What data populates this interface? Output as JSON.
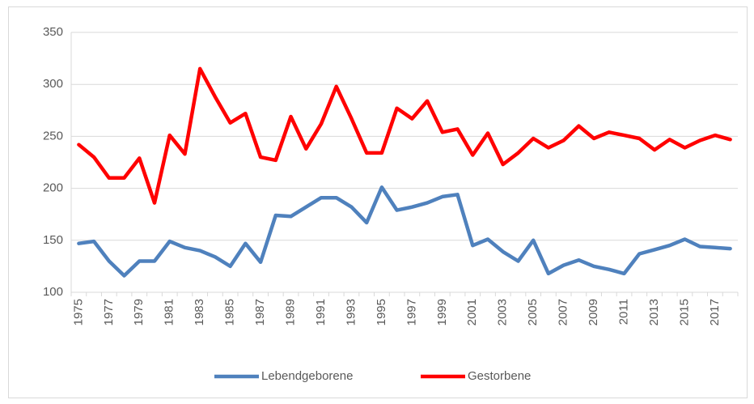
{
  "chart_data": {
    "type": "line",
    "categories": [
      "1975",
      null,
      "1977",
      null,
      "1979",
      null,
      "1981",
      null,
      "1983",
      null,
      "1985",
      null,
      "1987",
      null,
      "1989",
      null,
      "1991",
      null,
      "1993",
      null,
      "1995",
      null,
      "1997",
      null,
      "1999",
      null,
      "2001",
      null,
      "2003",
      null,
      "2005",
      null,
      "2007",
      null,
      "2009",
      null,
      "2011",
      null,
      "2013",
      null,
      "2015",
      null,
      "2017",
      null
    ],
    "series": [
      {
        "name": "Lebendgeborene",
        "color": "#4f81bd",
        "values": [
          147,
          149,
          130,
          116,
          130,
          130,
          149,
          143,
          140,
          134,
          125,
          147,
          129,
          174,
          173,
          182,
          191,
          191,
          182,
          167,
          201,
          179,
          182,
          186,
          192,
          194,
          145,
          151,
          139,
          130,
          150,
          118,
          126,
          131,
          125,
          122,
          118,
          137,
          141,
          145,
          151,
          144,
          143,
          142
        ]
      },
      {
        "name": "Gestorbene",
        "color": "#ff0000",
        "values": [
          242,
          230,
          210,
          210,
          229,
          186,
          251,
          233,
          315,
          288,
          263,
          272,
          230,
          227,
          269,
          238,
          262,
          298,
          267,
          234,
          234,
          277,
          267,
          284,
          254,
          257,
          232,
          253,
          223,
          234,
          248,
          239,
          246,
          260,
          248,
          254,
          251,
          248,
          237,
          247,
          239,
          246,
          251,
          247
        ]
      }
    ],
    "ylim": [
      100,
      350
    ],
    "yticks": [
      100,
      150,
      200,
      250,
      300,
      350
    ],
    "grid": true,
    "legend": "bottom"
  }
}
